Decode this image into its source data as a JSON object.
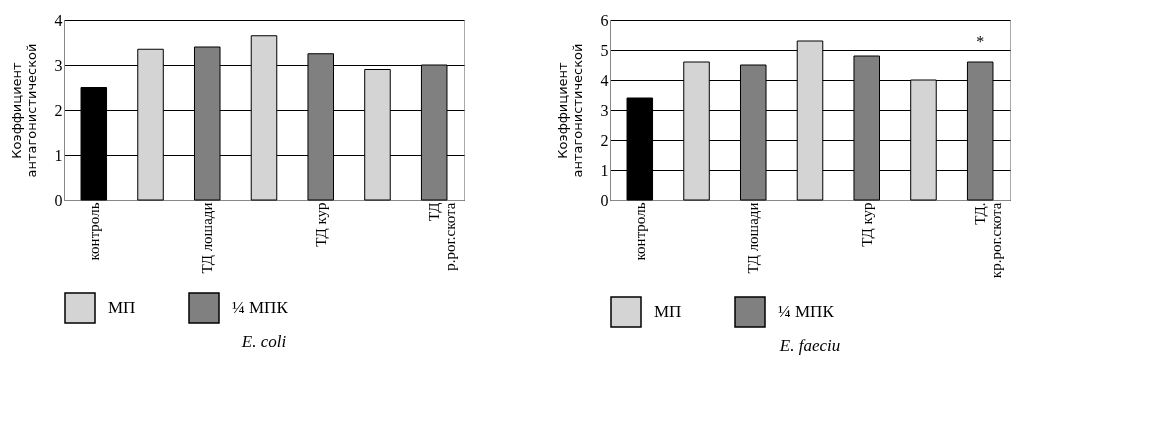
{
  "chart_data": [
    {
      "type": "bar",
      "title": "E. coli",
      "ylabel": "Коэффициент\nантагонистической",
      "categories": [
        "контроль",
        null,
        "ТД лошади",
        null,
        "ТД кур",
        null,
        "ТД\nр.рог.скота"
      ],
      "series": [
        {
          "color": "#000000",
          "values": [
            2.5,
            null,
            null,
            null,
            null,
            null,
            null
          ]
        },
        {
          "name": "МП",
          "color": "#d4d4d4",
          "values": [
            null,
            3.35,
            null,
            3.65,
            null,
            2.9,
            null
          ]
        },
        {
          "name": "¼ МПК",
          "color": "#808080",
          "values": [
            null,
            null,
            3.4,
            null,
            3.25,
            null,
            3.0
          ]
        }
      ],
      "ylim": [
        0,
        4
      ],
      "yticks": [
        0,
        1,
        2,
        3,
        4
      ],
      "grid": "y",
      "legend": "bottom"
    },
    {
      "type": "bar",
      "title": "E. faeciu",
      "ylabel": "Коэффициент\nантагонистической",
      "categories": [
        "контроль",
        null,
        "ТД лошади",
        null,
        "ТД кур",
        null,
        "ТД.\nкр.рог.скота"
      ],
      "series": [
        {
          "color": "#000000",
          "values": [
            3.4,
            null,
            null,
            null,
            null,
            null,
            null
          ]
        },
        {
          "name": "МП",
          "color": "#d4d4d4",
          "values": [
            null,
            4.6,
            null,
            5.3,
            null,
            4.0,
            null
          ]
        },
        {
          "name": "¼ МПК",
          "color": "#808080",
          "values": [
            null,
            null,
            4.5,
            null,
            4.8,
            null,
            4.6
          ]
        }
      ],
      "ylim": [
        0,
        6
      ],
      "yticks": [
        0,
        1,
        2,
        3,
        4,
        5,
        6
      ],
      "grid": "y",
      "legend": "bottom",
      "annotations": [
        {
          "text": "*",
          "x": "ТД.\nкр.рог.скота",
          "y": 4.6
        }
      ]
    }
  ]
}
